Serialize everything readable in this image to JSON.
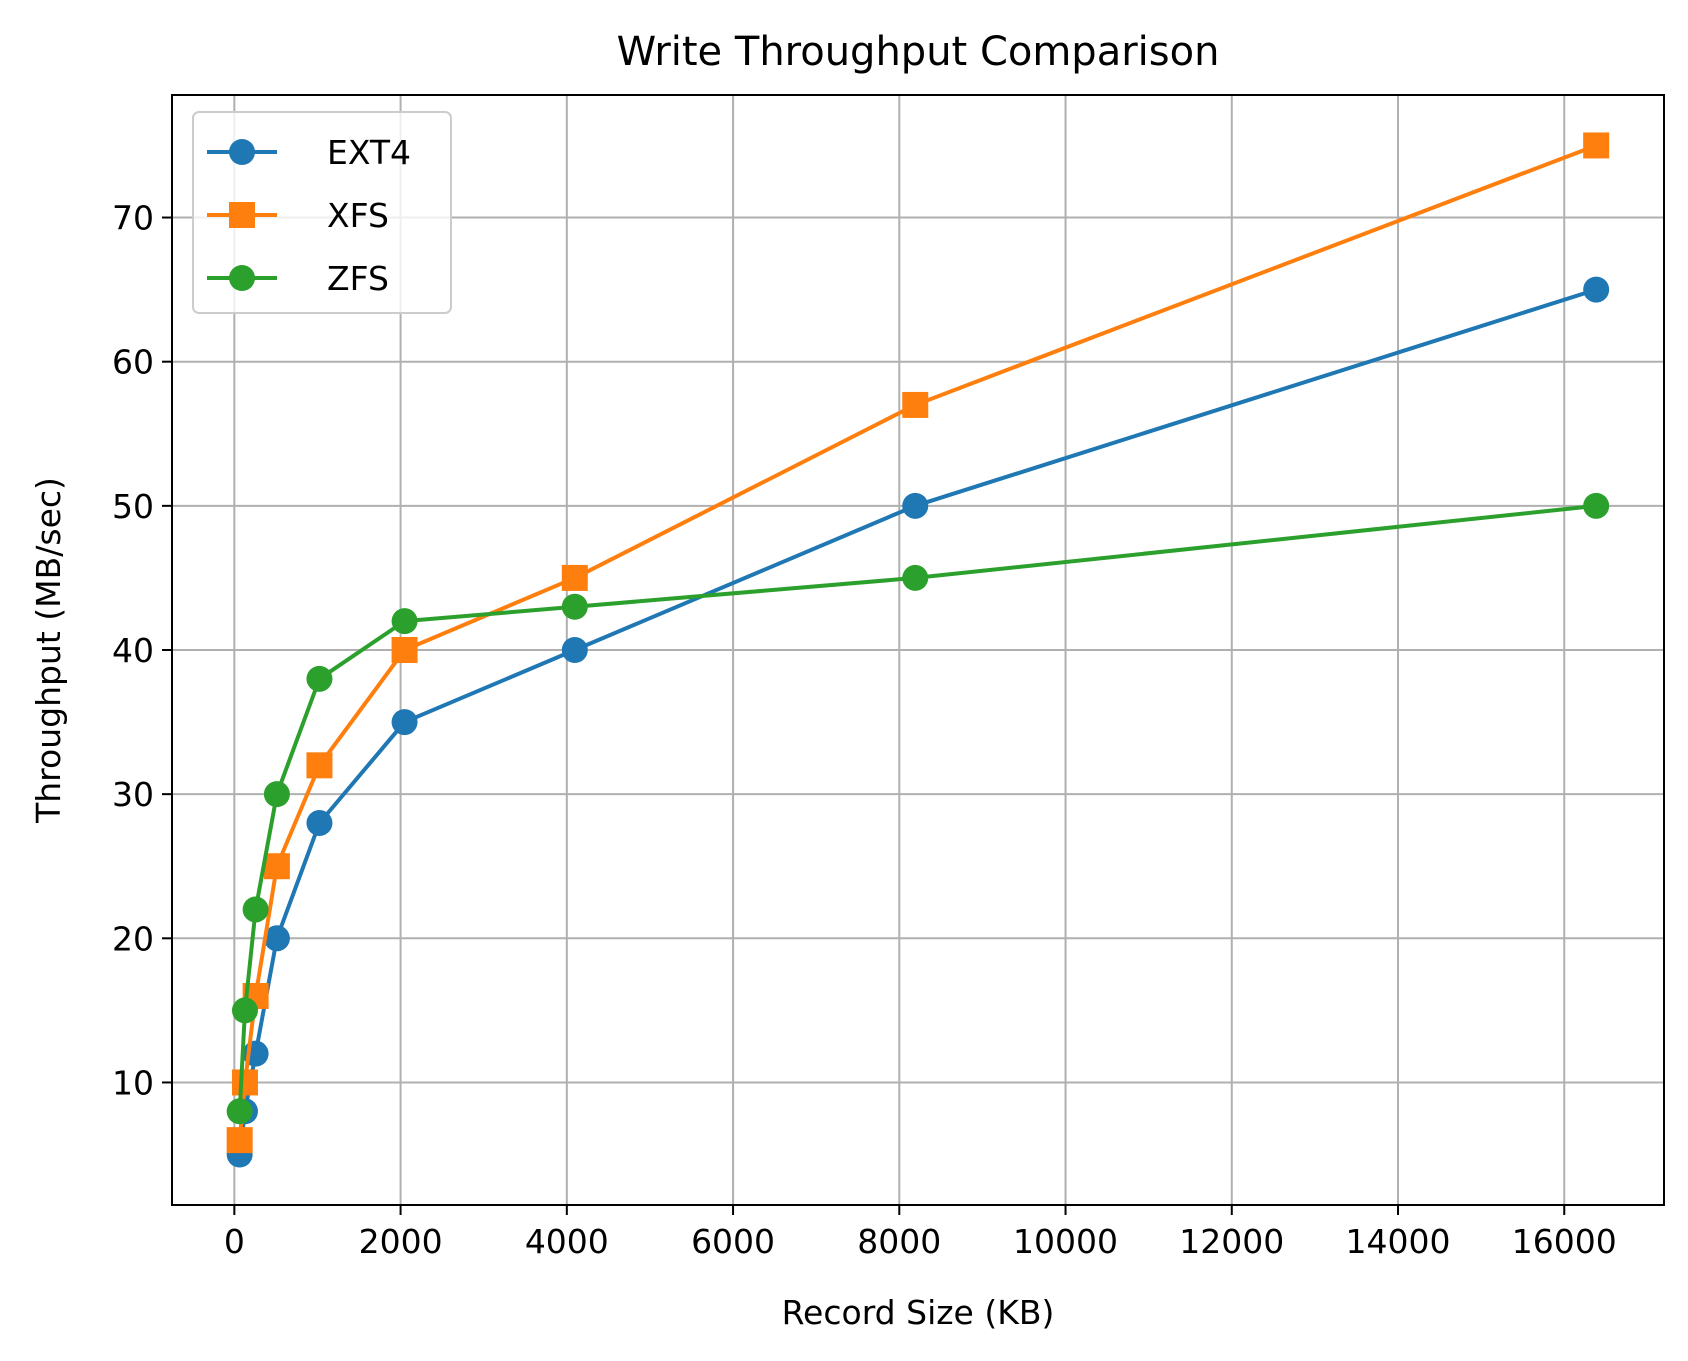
{
  "chart_data": {
    "type": "line",
    "title": "Write Throughput Comparison",
    "xlabel": "Record Size (KB)",
    "ylabel": "Throughput (MB/sec)",
    "xlim": [
      -750,
      17200
    ],
    "ylim": [
      1.5,
      78.5
    ],
    "xticks": [
      0,
      2000,
      4000,
      6000,
      8000,
      10000,
      12000,
      14000,
      16000
    ],
    "yticks": [
      10,
      20,
      30,
      40,
      50,
      60,
      70
    ],
    "grid": true,
    "legend_position": "upper-left",
    "series": [
      {
        "name": "EXT4",
        "color": "#1f77b4",
        "marker": "circle",
        "x": [
          64,
          128,
          256,
          512,
          1024,
          2048,
          4096,
          8192,
          16384
        ],
        "y": [
          5,
          8,
          12,
          20,
          28,
          35,
          40,
          50,
          65
        ]
      },
      {
        "name": "XFS",
        "color": "#ff7f0e",
        "marker": "square",
        "x": [
          64,
          128,
          256,
          512,
          1024,
          2048,
          4096,
          8192,
          16384
        ],
        "y": [
          6,
          10,
          16,
          25,
          32,
          40,
          45,
          57,
          75
        ]
      },
      {
        "name": "ZFS",
        "color": "#2ca02c",
        "marker": "circle",
        "x": [
          64,
          128,
          256,
          512,
          1024,
          2048,
          4096,
          8192,
          16384
        ],
        "y": [
          8,
          15,
          22,
          30,
          38,
          42,
          43,
          45,
          50
        ]
      }
    ]
  }
}
